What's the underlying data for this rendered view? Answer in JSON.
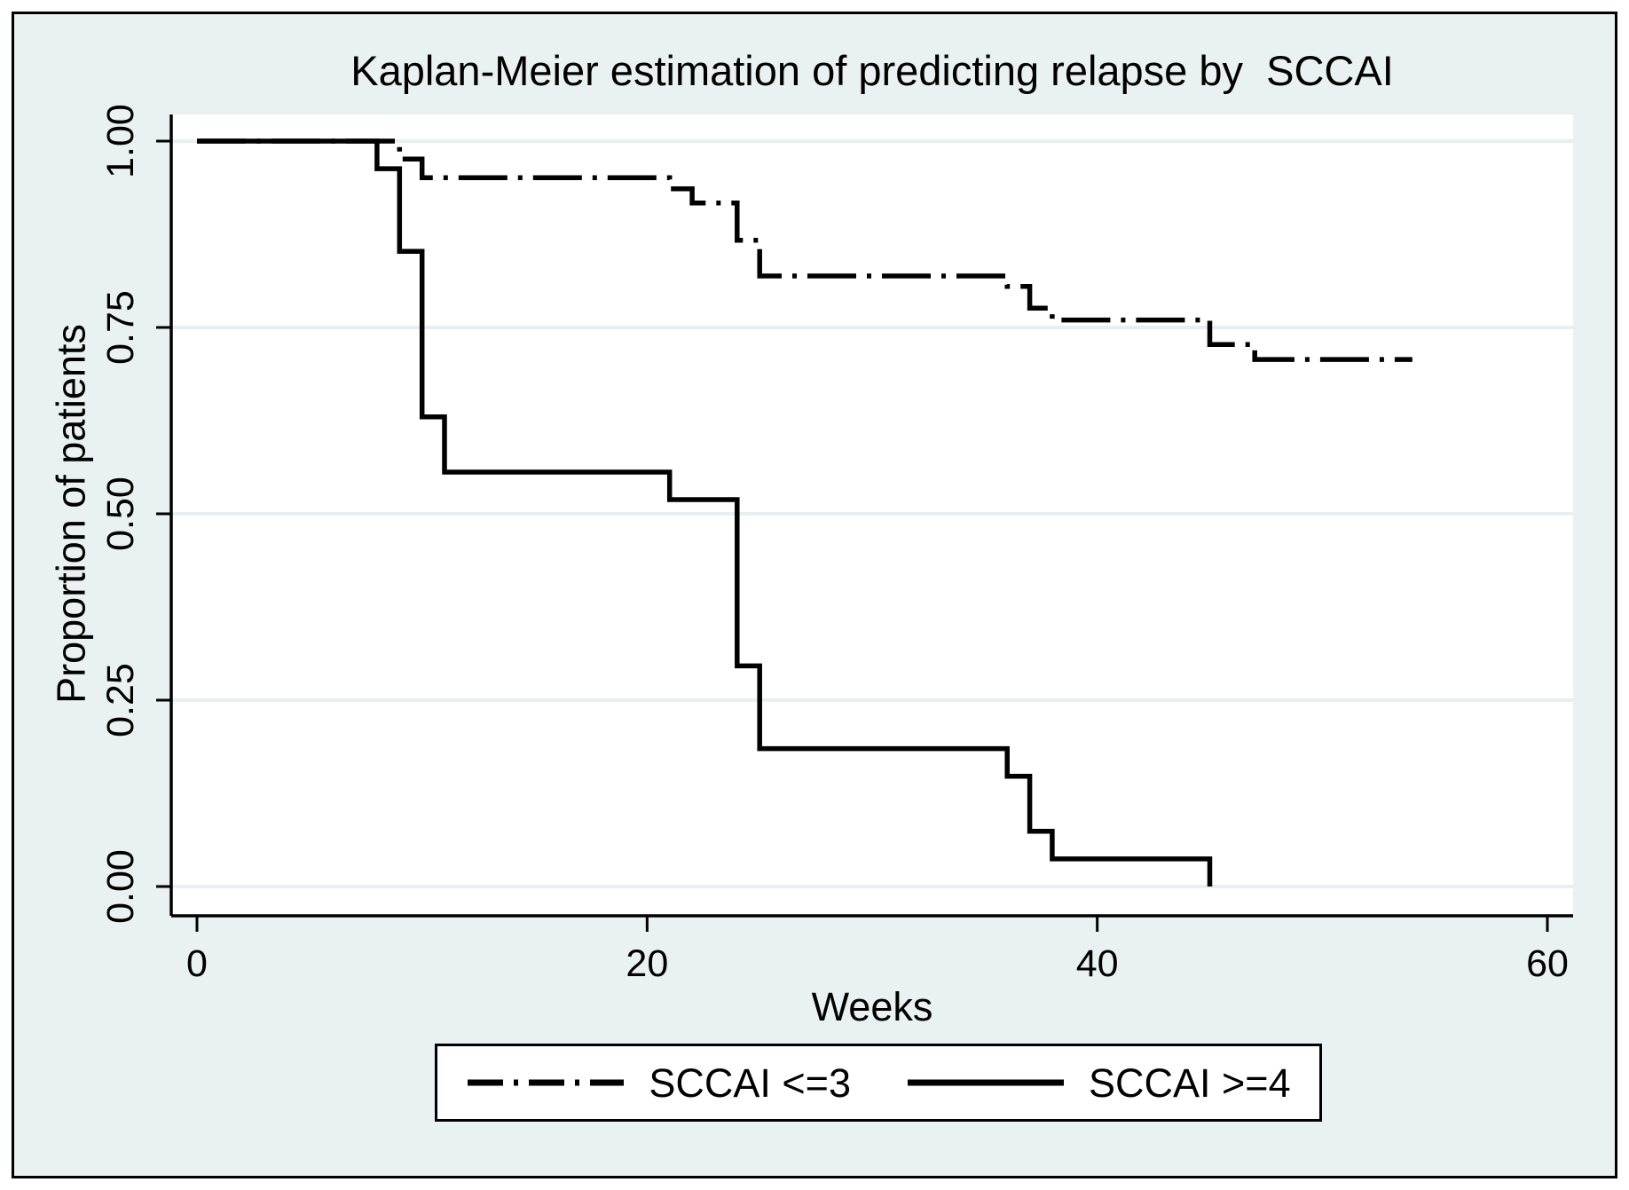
{
  "chart_data": {
    "type": "line",
    "subtype": "kaplan-meier-step",
    "title": "Kaplan-Meier estimation of predicting relapse by  SCCAI",
    "xlabel": "Weeks",
    "ylabel": "Proportion of patients",
    "xlim": [
      0,
      60
    ],
    "ylim": [
      0.0,
      1.0
    ],
    "grid": "horizontal",
    "legend_position": "bottom-center",
    "xticks": {
      "values": [
        0,
        20,
        40,
        60
      ],
      "labels": [
        "0",
        "20",
        "40",
        "60"
      ]
    },
    "yticks": {
      "values": [
        0.0,
        0.25,
        0.5,
        0.75,
        1.0
      ],
      "labels": [
        "0.00",
        "0.25",
        "0.50",
        "0.75",
        "1.00"
      ]
    },
    "series": [
      {
        "name": "SCCAI <=3",
        "style": "dash-dot",
        "color": "#000000",
        "steps": [
          [
            0,
            1.0
          ],
          [
            9,
            1.0
          ],
          [
            9,
            0.976
          ],
          [
            10,
            0.976
          ],
          [
            10,
            0.951
          ],
          [
            21,
            0.951
          ],
          [
            21,
            0.936
          ],
          [
            22,
            0.936
          ],
          [
            22,
            0.917
          ],
          [
            24,
            0.917
          ],
          [
            24,
            0.867
          ],
          [
            25,
            0.867
          ],
          [
            25,
            0.819
          ],
          [
            36,
            0.819
          ],
          [
            36,
            0.805
          ],
          [
            37,
            0.805
          ],
          [
            37,
            0.776
          ],
          [
            38,
            0.776
          ],
          [
            38,
            0.76
          ],
          [
            45,
            0.76
          ],
          [
            45,
            0.727
          ],
          [
            47,
            0.727
          ],
          [
            47,
            0.707
          ],
          [
            54,
            0.707
          ]
        ]
      },
      {
        "name": "SCCAI >=4",
        "style": "solid",
        "color": "#000000",
        "steps": [
          [
            0,
            1.0
          ],
          [
            8,
            1.0
          ],
          [
            8,
            0.963
          ],
          [
            9,
            0.963
          ],
          [
            9,
            0.852
          ],
          [
            10,
            0.852
          ],
          [
            10,
            0.63
          ],
          [
            11,
            0.63
          ],
          [
            11,
            0.556
          ],
          [
            21,
            0.556
          ],
          [
            21,
            0.519
          ],
          [
            24,
            0.519
          ],
          [
            24,
            0.296
          ],
          [
            25,
            0.296
          ],
          [
            25,
            0.185
          ],
          [
            36,
            0.185
          ],
          [
            36,
            0.148
          ],
          [
            37,
            0.148
          ],
          [
            37,
            0.074
          ],
          [
            38,
            0.074
          ],
          [
            38,
            0.037
          ],
          [
            45,
            0.037
          ],
          [
            45,
            0.0
          ]
        ]
      }
    ]
  },
  "colors": {
    "figure_background": "#ffffff",
    "frame_fill": "#eaf1f2",
    "plot_fill": "#ffffff",
    "gridline": "#e6eff1",
    "axis": "#000000",
    "line": "#000000",
    "text": "#000000",
    "legend_fill": "#ffffff",
    "legend_border": "#000000"
  }
}
